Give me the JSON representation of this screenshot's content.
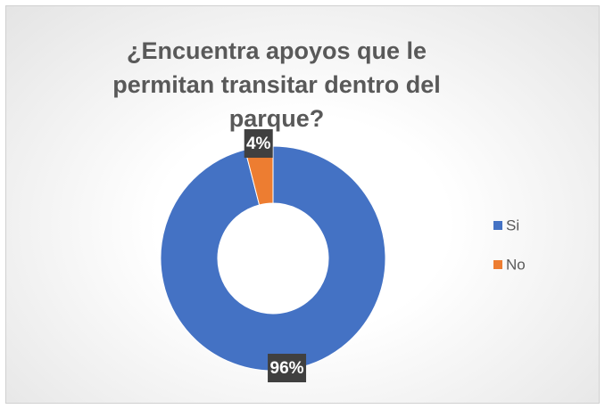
{
  "chart_data": {
    "type": "donut",
    "title": "¿Encuentra apoyos que le permitan transitar dentro del parque?",
    "categories": [
      "Si",
      "No"
    ],
    "values": [
      96,
      4
    ],
    "value_labels": [
      "96%",
      "4%"
    ],
    "colors": [
      "#4472c4",
      "#ed7d31"
    ],
    "legend": "right"
  }
}
